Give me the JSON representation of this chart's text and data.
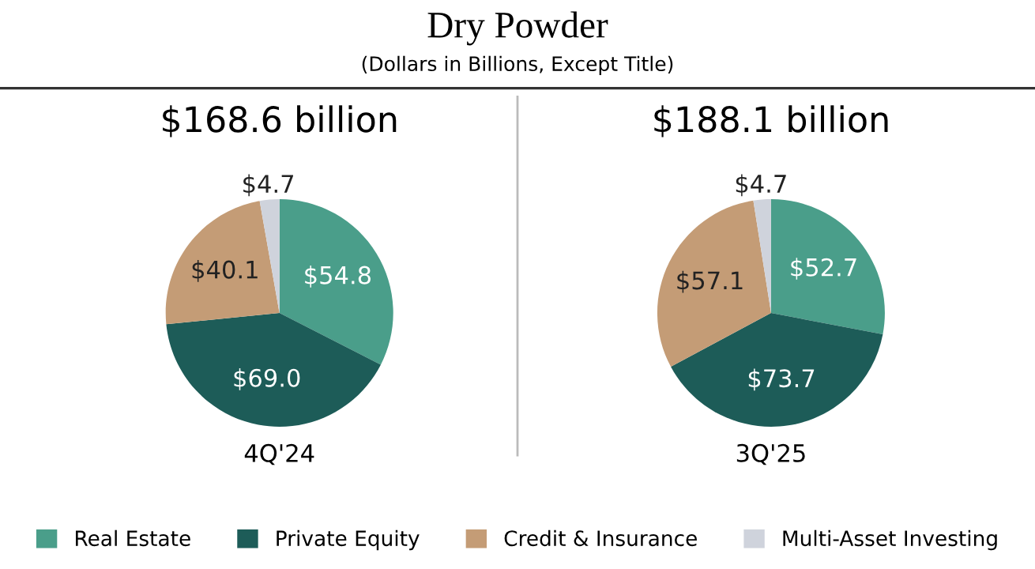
{
  "chart_data": [
    {
      "type": "pie",
      "title": "Dry Powder",
      "subtitle": "(Dollars in Billions, Except Title)",
      "annotations": [
        "$168.6 billion"
      ],
      "xlabel": "4Q'24",
      "categories": [
        "Real Estate",
        "Private Equity",
        "Credit & Insurance",
        "Multi-Asset Investing"
      ],
      "values": [
        54.8,
        69.0,
        40.1,
        4.7
      ],
      "value_labels": [
        "$54.8",
        "$69.0",
        "$40.1",
        "$4.7"
      ],
      "colors": [
        "#4a9e8a",
        "#1d5c58",
        "#c49c76",
        "#cfd3dc"
      ],
      "legend": "bottom"
    },
    {
      "type": "pie",
      "annotations": [
        "$188.1 billion"
      ],
      "xlabel": "3Q'25",
      "categories": [
        null,
        null,
        null,
        null
      ],
      "values": [
        52.7,
        73.7,
        57.1,
        4.7
      ],
      "value_labels": [
        "$52.7",
        "$73.7",
        "$57.1",
        "$4.7"
      ],
      "colors": [
        "#4a9e8a",
        "#1d5c58",
        "#c49c76",
        "#cfd3dc"
      ]
    }
  ]
}
